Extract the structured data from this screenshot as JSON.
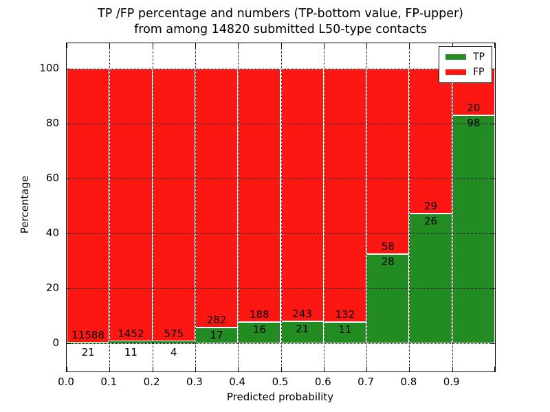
{
  "title": {
    "line1": "TP /FP percentage and numbers (TP-bottom value, FP-upper)",
    "line2": "from among 14820 submitted L50-type contacts"
  },
  "axes": {
    "xlabel": "Predicted probability",
    "ylabel": "Percentage",
    "xtick_labels": [
      "0.0",
      "0.1",
      "0.2",
      "0.3",
      "0.4",
      "0.5",
      "0.6",
      "0.7",
      "0.8",
      "0.9"
    ],
    "ytick_labels": [
      "0",
      "20",
      "40",
      "60",
      "80",
      "100"
    ],
    "ytick_values": [
      0,
      20,
      40,
      60,
      80,
      100
    ]
  },
  "legend": {
    "position": "upper right",
    "entries": [
      {
        "label": "TP",
        "color": "#228b22"
      },
      {
        "label": "FP",
        "color": "#fc1712"
      }
    ]
  },
  "colors": {
    "tp": "#228b22",
    "fp": "#fc1712",
    "bar_edge": "#ffffff",
    "grid": "#000000",
    "frame": "#000000",
    "background": "#ffffff"
  },
  "chart_data": {
    "type": "bar",
    "stacked": true,
    "normalized_to_percent": 100,
    "title": "TP /FP percentage and numbers (TP-bottom value, FP-upper) from among 14820 submitted L50-type contacts",
    "xlabel": "Predicted probability",
    "ylabel": "Percentage",
    "grid": "dotted",
    "xlim": [
      0.0,
      1.0
    ],
    "ylim": [
      -10.25,
      109.25
    ],
    "x_bin_edges": [
      0.0,
      0.1,
      0.2,
      0.3,
      0.4,
      0.5,
      0.6,
      0.7,
      0.8,
      0.9,
      1.0
    ],
    "series": [
      {
        "name": "TP",
        "color": "#228b22",
        "counts": [
          21,
          11,
          4,
          17,
          16,
          21,
          11,
          28,
          26,
          98
        ]
      },
      {
        "name": "FP",
        "color": "#fc1712",
        "counts": [
          11588,
          1452,
          575,
          282,
          188,
          243,
          132,
          58,
          29,
          20
        ]
      }
    ],
    "tp_percent_by_bin": [
      0.18,
      0.75,
      0.69,
      5.69,
      7.84,
      7.95,
      7.69,
      32.56,
      47.27,
      83.05
    ],
    "total_submitted": 14820
  }
}
